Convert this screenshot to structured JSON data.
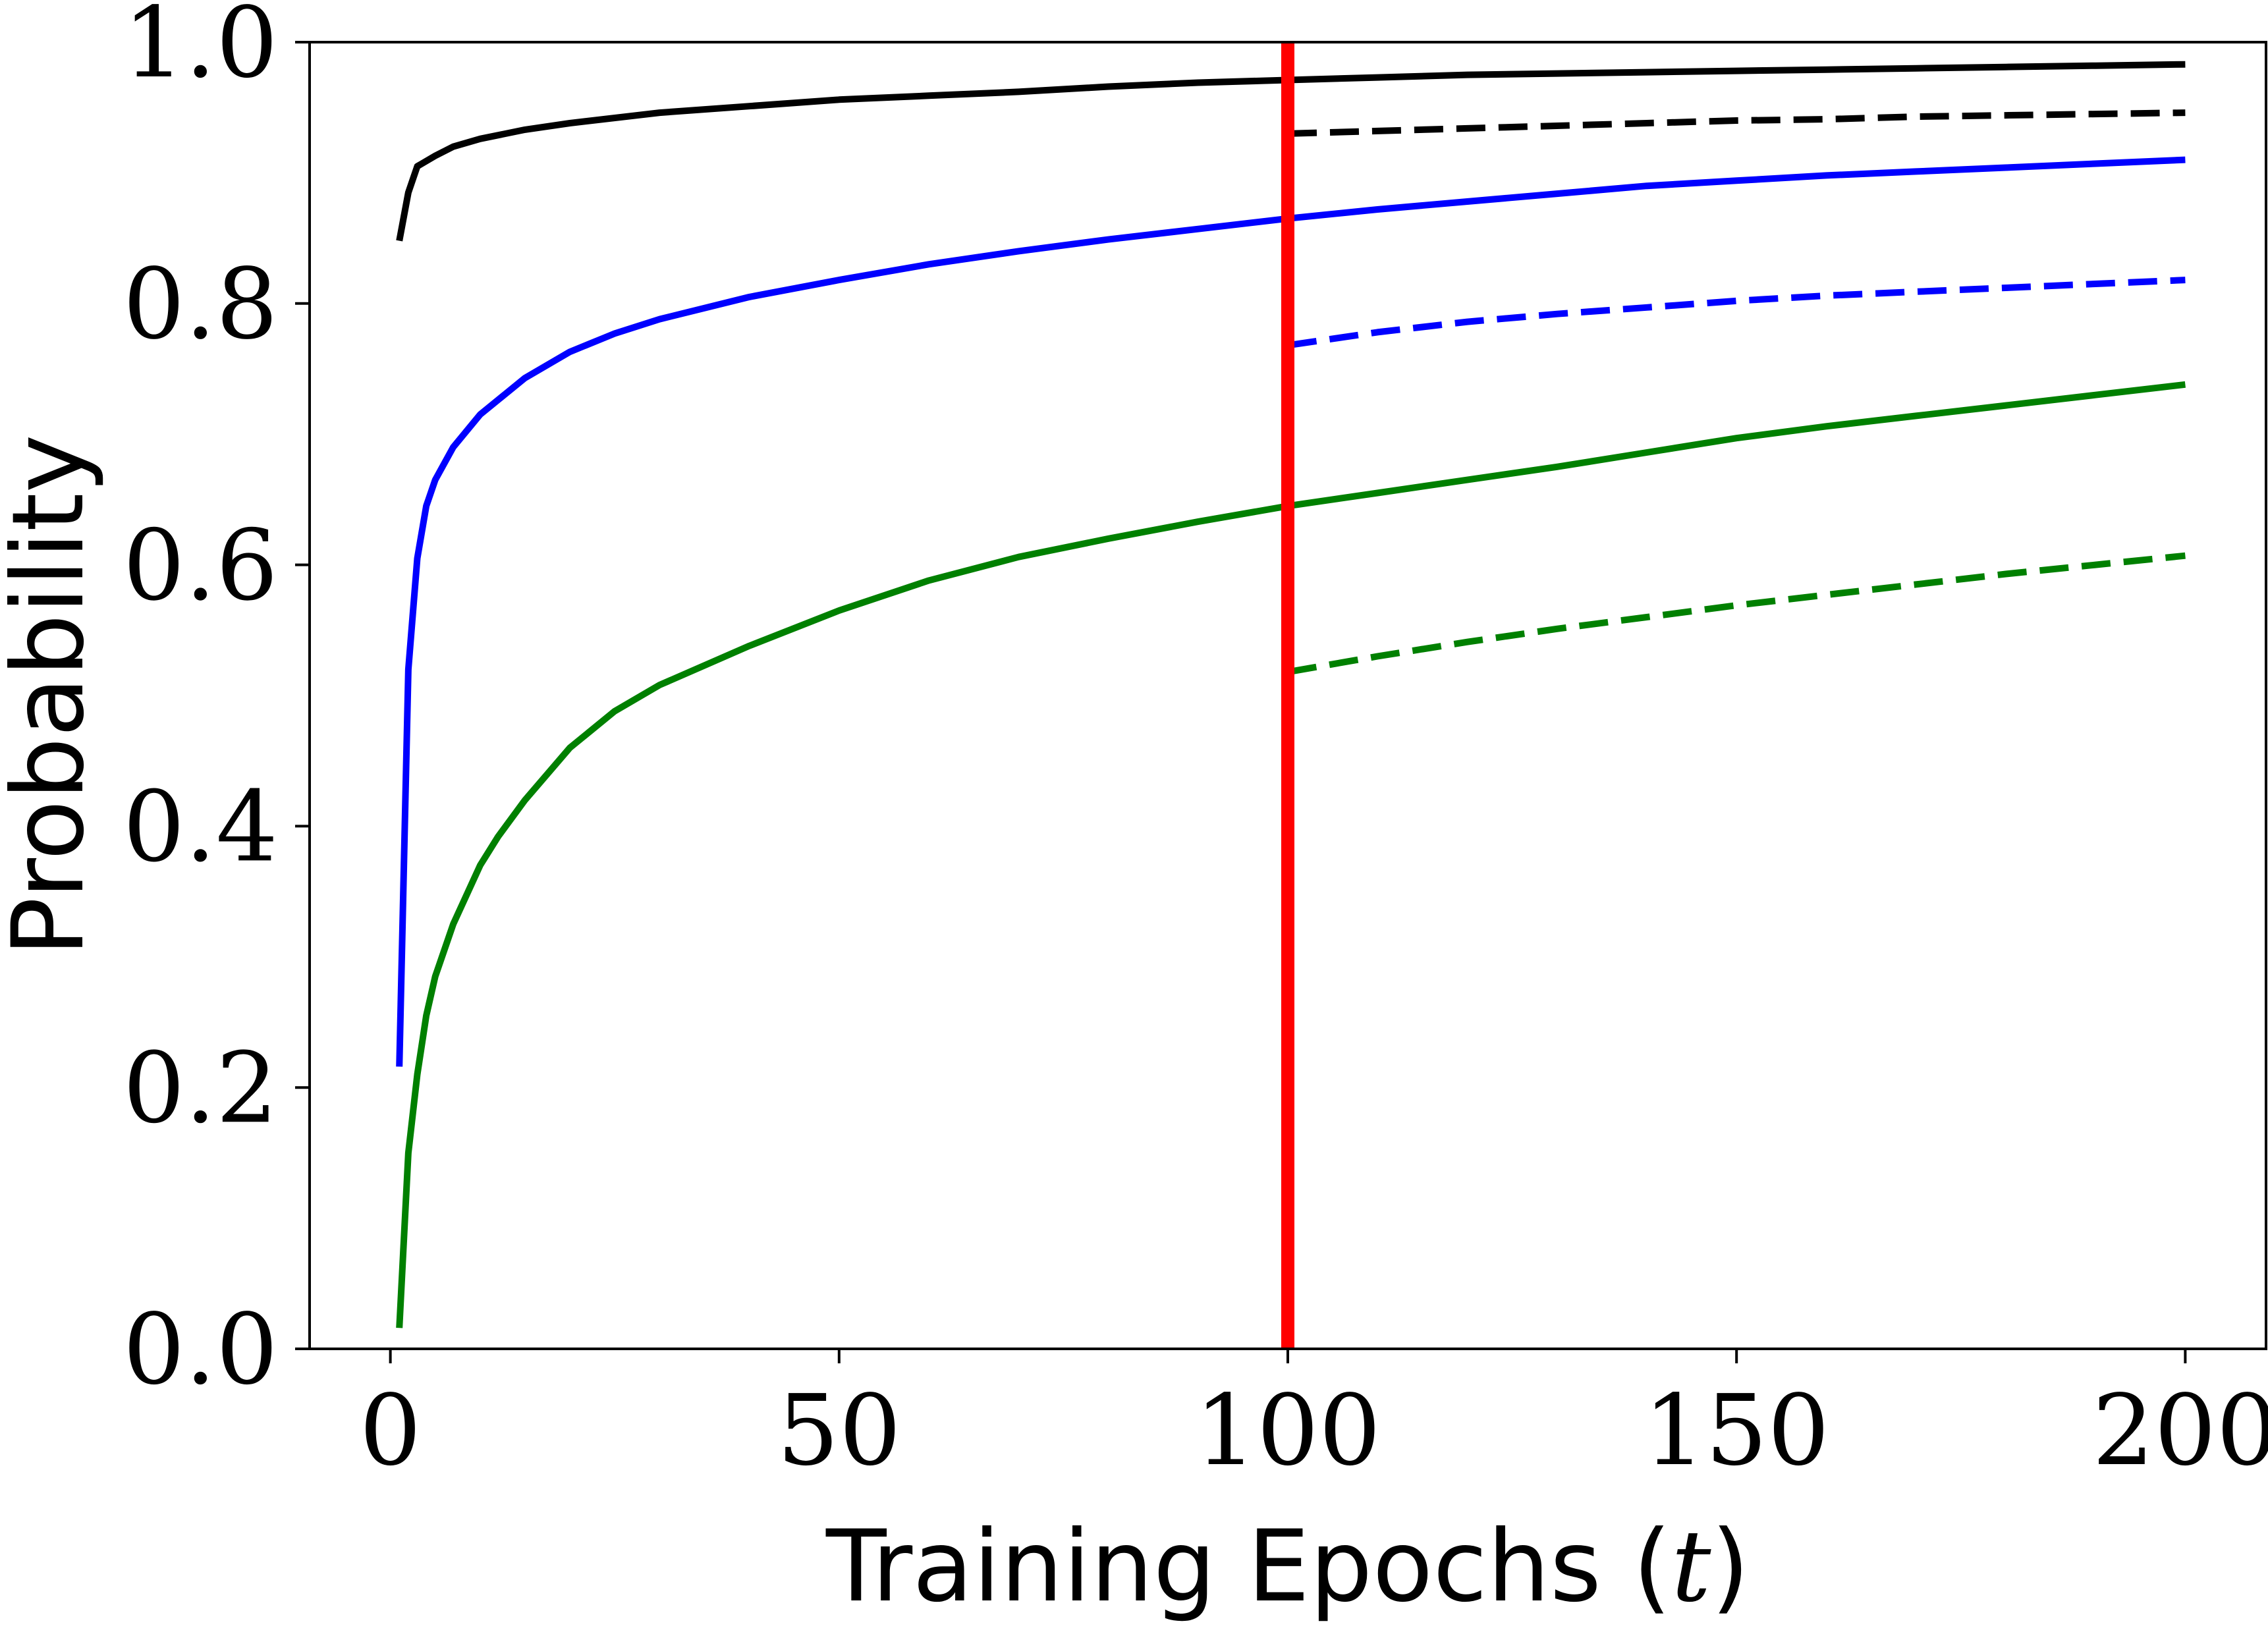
{
  "chart_data": {
    "type": "line",
    "title": "",
    "xlabel": "Training Epochs (",
    "xlabel_var": "t",
    "xlabel_close": ")",
    "ylabel": "Probability",
    "xlim": [
      -9,
      209
    ],
    "ylim": [
      0.0,
      1.0
    ],
    "grid": false,
    "legend": "none",
    "x_ticks": [
      0,
      50,
      100,
      150,
      200
    ],
    "x_tick_labels": [
      "0",
      "50",
      "100",
      "150",
      "200"
    ],
    "y_ticks": [
      0.0,
      0.2,
      0.4,
      0.6,
      0.8,
      1.0
    ],
    "y_tick_labels": [
      "0.0",
      "0.2",
      "0.4",
      "0.6",
      "0.8",
      "1.0"
    ],
    "vertical_marker": {
      "x": 100,
      "color": "#ff0000"
    },
    "series": [
      {
        "color": "#000000",
        "style": "solid",
        "x": [
          1,
          2,
          3,
          5,
          7,
          10,
          15,
          20,
          30,
          40,
          50,
          60,
          70,
          80,
          90,
          100,
          110,
          120,
          130,
          140,
          150,
          160,
          170,
          180,
          190,
          200
        ],
        "y": [
          0.848,
          0.885,
          0.905,
          0.913,
          0.92,
          0.926,
          0.933,
          0.938,
          0.946,
          0.951,
          0.956,
          0.959,
          0.962,
          0.966,
          0.969,
          0.971,
          0.973,
          0.975,
          0.976,
          0.977,
          0.978,
          0.979,
          0.98,
          0.981,
          0.982,
          0.983
        ]
      },
      {
        "color": "#000000",
        "style": "dashed",
        "x": [
          100,
          110,
          120,
          130,
          140,
          150,
          160,
          170,
          180,
          190,
          200
        ],
        "y": [
          0.93,
          0.932,
          0.934,
          0.936,
          0.938,
          0.94,
          0.941,
          0.943,
          0.944,
          0.945,
          0.946
        ]
      },
      {
        "color": "#0000ff",
        "style": "solid",
        "x": [
          1,
          2,
          3,
          4,
          5,
          7,
          10,
          15,
          20,
          25,
          30,
          40,
          50,
          60,
          70,
          80,
          90,
          100,
          110,
          120,
          130,
          140,
          150,
          160,
          170,
          180,
          190,
          200
        ],
        "y": [
          0.216,
          0.52,
          0.605,
          0.645,
          0.665,
          0.69,
          0.715,
          0.743,
          0.763,
          0.777,
          0.788,
          0.805,
          0.818,
          0.83,
          0.84,
          0.849,
          0.857,
          0.865,
          0.872,
          0.878,
          0.884,
          0.89,
          0.894,
          0.898,
          0.901,
          0.904,
          0.907,
          0.91
        ]
      },
      {
        "color": "#0000ff",
        "style": "dashed",
        "x": [
          100,
          110,
          120,
          130,
          140,
          150,
          160,
          170,
          180,
          190,
          200
        ],
        "y": [
          0.768,
          0.778,
          0.786,
          0.792,
          0.797,
          0.802,
          0.806,
          0.809,
          0.812,
          0.815,
          0.818
        ]
      },
      {
        "color": "#008000",
        "style": "solid",
        "x": [
          1,
          2,
          3,
          4,
          5,
          7,
          10,
          12,
          15,
          20,
          25,
          30,
          40,
          50,
          60,
          70,
          80,
          90,
          100,
          110,
          120,
          130,
          140,
          150,
          160,
          170,
          180,
          190,
          200
        ],
        "y": [
          0.016,
          0.15,
          0.21,
          0.255,
          0.285,
          0.325,
          0.37,
          0.392,
          0.42,
          0.46,
          0.488,
          0.508,
          0.538,
          0.565,
          0.588,
          0.606,
          0.62,
          0.633,
          0.645,
          0.655,
          0.665,
          0.675,
          0.686,
          0.697,
          0.706,
          0.714,
          0.722,
          0.73,
          0.738
        ]
      },
      {
        "color": "#008000",
        "style": "dashed",
        "x": [
          100,
          110,
          120,
          130,
          140,
          150,
          160,
          170,
          180,
          190,
          200
        ],
        "y": [
          0.518,
          0.53,
          0.541,
          0.551,
          0.56,
          0.569,
          0.577,
          0.585,
          0.593,
          0.6,
          0.607
        ]
      }
    ]
  }
}
